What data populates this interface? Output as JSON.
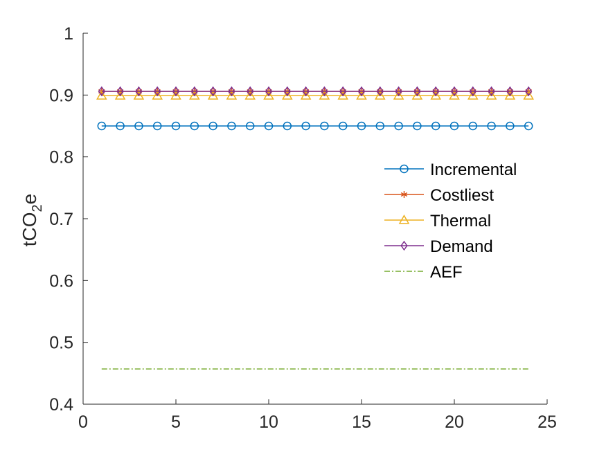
{
  "chart_data": {
    "type": "line",
    "title": "",
    "xlabel": "",
    "ylabel": {
      "main": "tCO",
      "sub": "2",
      "tail": "e"
    },
    "xlim": [
      0,
      25
    ],
    "ylim": [
      0.4,
      1.0
    ],
    "xticks": [
      0,
      5,
      10,
      15,
      20,
      25
    ],
    "yticks": [
      0.4,
      0.5,
      0.6,
      0.7,
      0.8,
      0.9,
      1.0
    ],
    "ytick_labels": [
      "0.4",
      "0.5",
      "0.6",
      "0.7",
      "0.8",
      "0.9",
      "1"
    ],
    "grid": false,
    "legend_position": "center-right",
    "x": [
      1,
      2,
      3,
      4,
      5,
      6,
      7,
      8,
      9,
      10,
      11,
      12,
      13,
      14,
      15,
      16,
      17,
      18,
      19,
      20,
      21,
      22,
      23,
      24
    ],
    "series": [
      {
        "name": "Incremental",
        "color": "#0072BD",
        "marker": "circle",
        "linestyle": "solid",
        "values": [
          0.85,
          0.85,
          0.85,
          0.85,
          0.85,
          0.85,
          0.85,
          0.85,
          0.85,
          0.85,
          0.85,
          0.85,
          0.85,
          0.85,
          0.85,
          0.85,
          0.85,
          0.85,
          0.85,
          0.85,
          0.85,
          0.85,
          0.85,
          0.85
        ]
      },
      {
        "name": "Costliest",
        "color": "#D95319",
        "marker": "asterisk",
        "linestyle": "solid",
        "values": [
          0.906,
          0.906,
          0.906,
          0.906,
          0.906,
          0.906,
          0.906,
          0.906,
          0.906,
          0.906,
          0.906,
          0.906,
          0.906,
          0.906,
          0.906,
          0.906,
          0.906,
          0.906,
          0.906,
          0.906,
          0.906,
          0.906,
          0.906,
          0.906
        ]
      },
      {
        "name": "Thermal",
        "color": "#EDB120",
        "marker": "triangle",
        "linestyle": "solid",
        "values": [
          0.899,
          0.899,
          0.899,
          0.899,
          0.899,
          0.899,
          0.899,
          0.899,
          0.899,
          0.899,
          0.899,
          0.899,
          0.899,
          0.899,
          0.899,
          0.899,
          0.899,
          0.899,
          0.899,
          0.899,
          0.899,
          0.899,
          0.899,
          0.899
        ]
      },
      {
        "name": "Demand",
        "color": "#7E2F8E",
        "marker": "diamond",
        "linestyle": "solid",
        "values": [
          0.906,
          0.906,
          0.906,
          0.906,
          0.906,
          0.906,
          0.906,
          0.906,
          0.906,
          0.906,
          0.906,
          0.906,
          0.906,
          0.906,
          0.906,
          0.906,
          0.906,
          0.906,
          0.906,
          0.906,
          0.906,
          0.906,
          0.906,
          0.906
        ]
      },
      {
        "name": "AEF",
        "color": "#77AC30",
        "marker": "none",
        "linestyle": "dashdot",
        "values": [
          0.457,
          0.457,
          0.457,
          0.457,
          0.457,
          0.457,
          0.457,
          0.457,
          0.457,
          0.457,
          0.457,
          0.457,
          0.457,
          0.457,
          0.457,
          0.457,
          0.457,
          0.457,
          0.457,
          0.457,
          0.457,
          0.457,
          0.457,
          0.457
        ]
      }
    ]
  }
}
